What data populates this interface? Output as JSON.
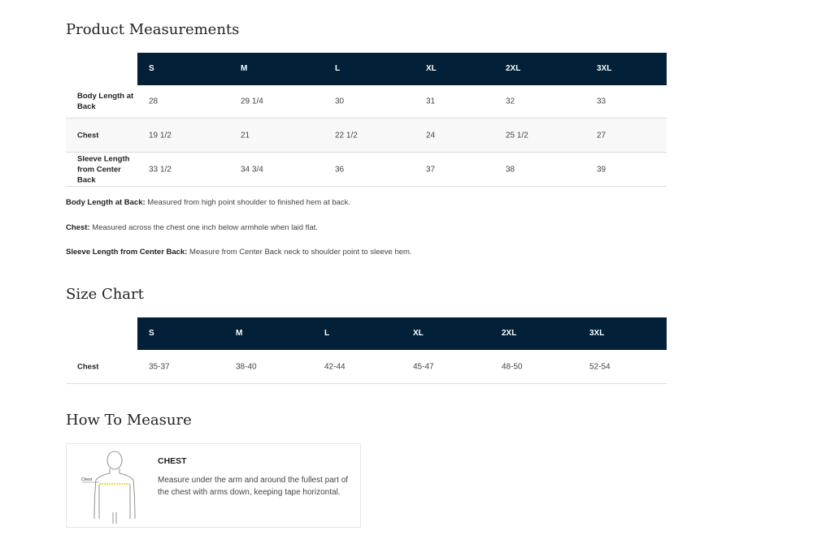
{
  "measurements": {
    "title": "Product Measurements",
    "sizes": [
      "S",
      "M",
      "L",
      "XL",
      "2XL",
      "3XL"
    ],
    "rows": [
      {
        "label": "Body Length at Back",
        "values": [
          "28",
          "29 1/4",
          "30",
          "31",
          "32",
          "33"
        ]
      },
      {
        "label": "Chest",
        "values": [
          "19 1/2",
          "21",
          "22 1/2",
          "24",
          "25 1/2",
          "27"
        ]
      },
      {
        "label": "Sleeve Length from Center Back",
        "values": [
          "33 1/2",
          "34 3/4",
          "36",
          "37",
          "38",
          "39"
        ]
      }
    ],
    "notes": [
      {
        "term": "Body Length at Back:",
        "text": " Measured from high point shoulder to finished hem at back."
      },
      {
        "term": "Chest:",
        "text": " Measured across the chest one inch below armhole when laid flat."
      },
      {
        "term": "Sleeve Length from Center Back:",
        "text": " Measure from Center Back neck to shoulder point to sleeve hem."
      }
    ]
  },
  "size_chart": {
    "title": "Size Chart",
    "sizes": [
      "S",
      "M",
      "L",
      "XL",
      "2XL",
      "3XL"
    ],
    "rows": [
      {
        "label": "Chest",
        "values": [
          "35-37",
          "38-40",
          "42-44",
          "45-47",
          "48-50",
          "52-54"
        ]
      }
    ]
  },
  "how_to": {
    "title": "How To Measure",
    "figure_label": "Chest",
    "heading": "CHEST",
    "description": "Measure under the arm and around the fullest part of the chest with arms down, keeping tape horizontal."
  },
  "colors": {
    "header_bg": "#022138",
    "tape": "#e8d400"
  }
}
